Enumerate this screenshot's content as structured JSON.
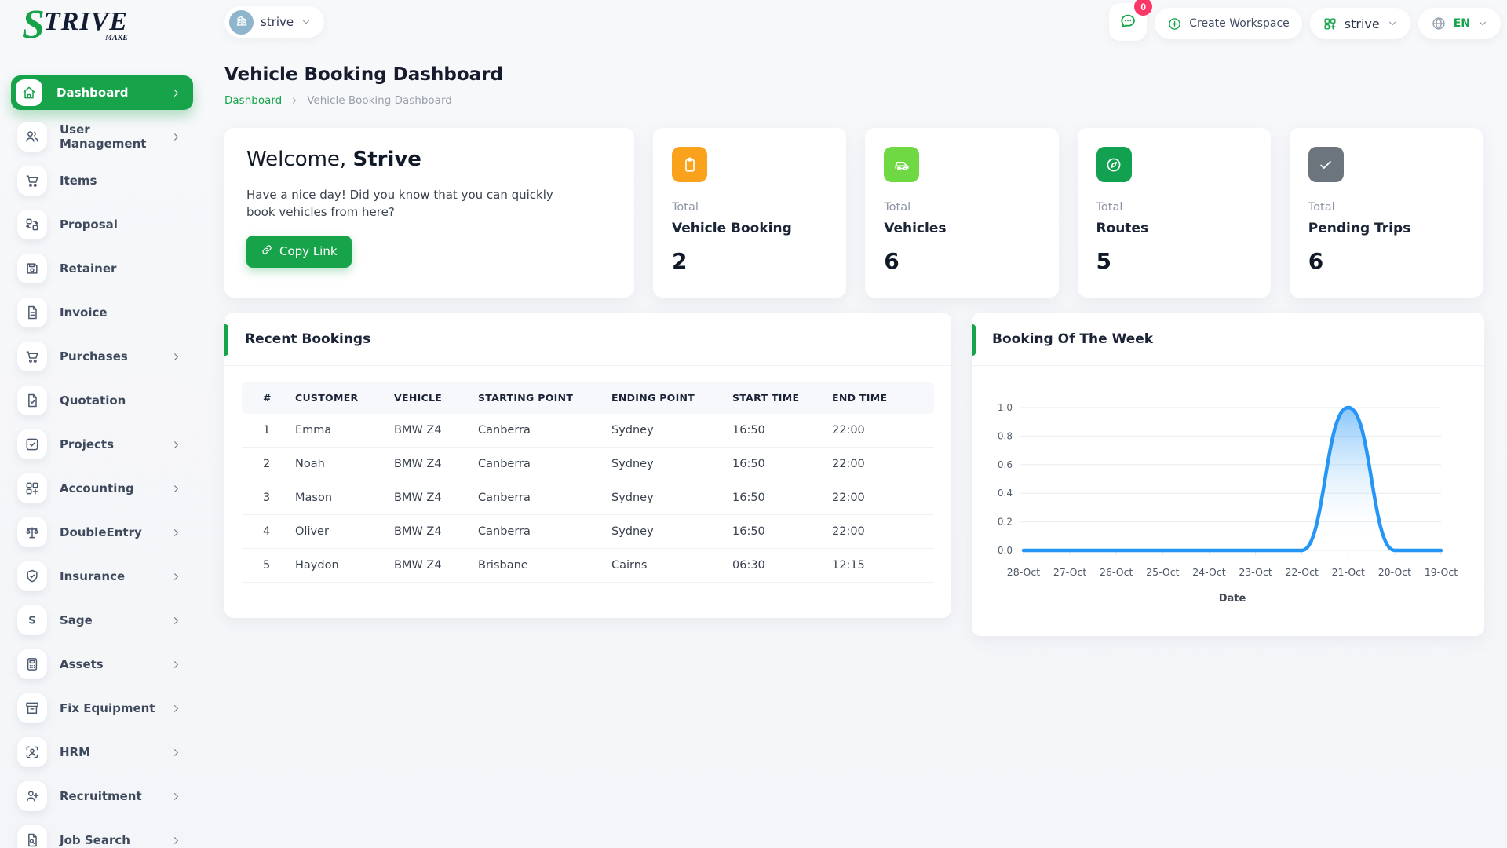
{
  "brand": {
    "name_s": "S",
    "name_rest": "TRIVE",
    "tagline": "MAKE"
  },
  "topbar": {
    "workspace_switcher": {
      "label": "strive"
    },
    "chat_badge": "0",
    "create_workspace_label": "Create Workspace",
    "workspace_menu_label": "strive",
    "language": {
      "code": "EN"
    }
  },
  "page": {
    "title": "Vehicle Booking Dashboard",
    "breadcrumb": [
      "Dashboard",
      "Vehicle Booking Dashboard"
    ]
  },
  "welcome": {
    "greeting_prefix": "Welcome,",
    "greeting_name": "Strive",
    "message": "Have a nice day! Did you know that you can quickly book vehicles from here?",
    "copy_link_label": "Copy Link"
  },
  "stats": [
    {
      "top": "Total",
      "label": "Vehicle Booking",
      "value": "2",
      "icon": "clipboard-icon",
      "color": "#FAA21C"
    },
    {
      "top": "Total",
      "label": "Vehicles",
      "value": "6",
      "icon": "car-icon",
      "color": "#6FD943"
    },
    {
      "top": "Total",
      "label": "Routes",
      "value": "5",
      "icon": "compass-icon",
      "color": "#12A150"
    },
    {
      "top": "Total",
      "label": "Pending Trips",
      "value": "6",
      "icon": "check-icon",
      "color": "#6C757D"
    }
  ],
  "sidebar": {
    "items": [
      {
        "label": "Dashboard",
        "icon": "home-icon",
        "chevron": true,
        "active": true
      },
      {
        "label": "User Management",
        "icon": "users-icon",
        "chevron": true
      },
      {
        "label": "Items",
        "icon": "cart-icon",
        "chevron": false
      },
      {
        "label": "Proposal",
        "icon": "swap-boxes-icon",
        "chevron": false
      },
      {
        "label": "Retainer",
        "icon": "save-icon",
        "chevron": false
      },
      {
        "label": "Invoice",
        "icon": "file-text-icon",
        "chevron": false
      },
      {
        "label": "Purchases",
        "icon": "cart-icon",
        "chevron": true
      },
      {
        "label": "Quotation",
        "icon": "file-check-icon",
        "chevron": false
      },
      {
        "label": "Projects",
        "icon": "check-square-icon",
        "chevron": true
      },
      {
        "label": "Accounting",
        "icon": "grid-plus-icon",
        "chevron": true
      },
      {
        "label": "DoubleEntry",
        "icon": "scale-icon",
        "chevron": true
      },
      {
        "label": "Insurance",
        "icon": "shield-check-icon",
        "chevron": true
      },
      {
        "label": "Sage",
        "icon": "letter-s-icon",
        "chevron": true
      },
      {
        "label": "Assets",
        "icon": "calculator-icon",
        "chevron": true
      },
      {
        "label": "Fix Equipment",
        "icon": "archive-icon",
        "chevron": true
      },
      {
        "label": "HRM",
        "icon": "user-focus-icon",
        "chevron": true
      },
      {
        "label": "Recruitment",
        "icon": "user-plus-icon",
        "chevron": true
      },
      {
        "label": "Job Search",
        "icon": "file-search-icon",
        "chevron": true
      }
    ]
  },
  "bookings": {
    "title": "Recent Bookings",
    "columns": [
      "#",
      "CUSTOMER",
      "VEHICLE",
      "STARTING POINT",
      "ENDING POINT",
      "START TIME",
      "END TIME"
    ],
    "rows": [
      [
        "1",
        "Emma",
        "BMW Z4",
        "Canberra",
        "Sydney",
        "16:50",
        "22:00"
      ],
      [
        "2",
        "Noah",
        "BMW Z4",
        "Canberra",
        "Sydney",
        "16:50",
        "22:00"
      ],
      [
        "3",
        "Mason",
        "BMW Z4",
        "Canberra",
        "Sydney",
        "16:50",
        "22:00"
      ],
      [
        "4",
        "Oliver",
        "BMW Z4",
        "Canberra",
        "Sydney",
        "16:50",
        "22:00"
      ],
      [
        "5",
        "Haydon",
        "BMW Z4",
        "Brisbane",
        "Cairns",
        "06:30",
        "12:15"
      ]
    ]
  },
  "chart_data": {
    "type": "area",
    "title": "Booking Of The Week",
    "categories": [
      "28-Oct",
      "27-Oct",
      "26-Oct",
      "25-Oct",
      "24-Oct",
      "23-Oct",
      "22-Oct",
      "21-Oct",
      "20-Oct",
      "19-Oct"
    ],
    "values": [
      0,
      0,
      0,
      0,
      0,
      0,
      0,
      1,
      0,
      0
    ],
    "xlabel": "Date",
    "ylabel": "",
    "ylim": [
      0,
      1
    ],
    "yticks": [
      0.0,
      0.2,
      0.4,
      0.6,
      0.8,
      1.0
    ],
    "line_color": "#2596F5",
    "grid": "horizontal",
    "legend": "none"
  }
}
